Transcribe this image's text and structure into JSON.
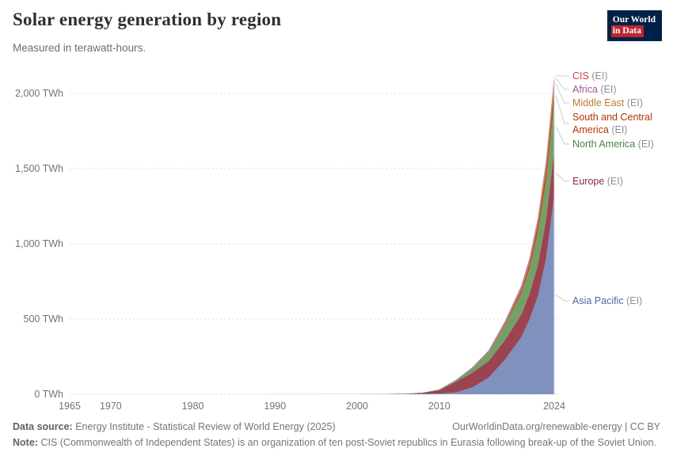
{
  "header": {
    "title": "Solar energy generation by region",
    "subtitle": "Measured in terawatt-hours.",
    "logo": {
      "line1": "Our World",
      "line2": "in Data"
    }
  },
  "chart_data": {
    "type": "area",
    "stacked": true,
    "title": "Solar energy generation by region",
    "unit": "TWh",
    "xlim": [
      1965,
      2024
    ],
    "ylim": [
      0,
      2200
    ],
    "grid": "dashed-horizontal",
    "legend_position": "right",
    "x": [
      1965,
      1970,
      1975,
      1980,
      1985,
      1990,
      1995,
      2000,
      2003,
      2006,
      2008,
      2010,
      2012,
      2014,
      2016,
      2018,
      2020,
      2021,
      2022,
      2023,
      2024
    ],
    "series": [
      {
        "name": "Asia Pacific",
        "color": "#7e92bd",
        "label_color": "#4c6a9c",
        "values": [
          0,
          0,
          0,
          0,
          0,
          0.1,
          0.2,
          0.4,
          0.7,
          1.2,
          2,
          4,
          12,
          45,
          110,
          230,
          380,
          500,
          650,
          900,
          1320
        ]
      },
      {
        "name": "Europe",
        "color": "#9c4351",
        "label_color": "#8b2b3f",
        "values": [
          0,
          0,
          0,
          0,
          0,
          0,
          0.1,
          0.1,
          0.5,
          2.5,
          7,
          23,
          70,
          97,
          110,
          130,
          150,
          170,
          210,
          255,
          305
        ]
      },
      {
        "name": "North America",
        "color": "#74a066",
        "label_color": "#4c8045",
        "values": [
          0,
          0,
          0,
          0,
          0.1,
          0.4,
          0.5,
          0.6,
          0.7,
          1,
          2,
          4,
          10,
          30,
          55,
          95,
          140,
          165,
          210,
          255,
          310
        ]
      },
      {
        "name": "South and Central America",
        "color": "#b5562c",
        "label_color": "#b13507",
        "values": [
          0,
          0,
          0,
          0,
          0,
          0,
          0,
          0,
          0,
          0,
          0,
          0.1,
          0.5,
          1,
          3,
          10,
          25,
          40,
          60,
          85,
          105
        ]
      },
      {
        "name": "Middle East",
        "color": "#cf8841",
        "label_color": "#bf7b33",
        "values": [
          0,
          0,
          0,
          0,
          0,
          0,
          0,
          0,
          0,
          0,
          0,
          0,
          0.5,
          1,
          3,
          6,
          12,
          16,
          22,
          32,
          47
        ]
      },
      {
        "name": "Africa",
        "color": "#a468ab",
        "label_color": "#a2559c",
        "values": [
          0,
          0,
          0,
          0,
          0,
          0,
          0,
          0,
          0,
          0,
          0.3,
          1,
          2,
          4,
          9,
          13,
          14,
          15,
          17,
          21,
          28
        ]
      },
      {
        "name": "CIS",
        "color": "#cc4755",
        "label_color": "#cf3d4e",
        "values": [
          0,
          0,
          0,
          0,
          0,
          0,
          0,
          0,
          0,
          0,
          0,
          0,
          0,
          0.1,
          0.3,
          0.8,
          2,
          2.5,
          3,
          4,
          5
        ]
      }
    ],
    "yticks": [
      {
        "value": 0,
        "label": "0 TWh"
      },
      {
        "value": 500,
        "label": "500 TWh"
      },
      {
        "value": 1000,
        "label": "1,000 TWh"
      },
      {
        "value": 1500,
        "label": "1,500 TWh"
      },
      {
        "value": 2000,
        "label": "2,000 TWh"
      }
    ],
    "xticks": [
      {
        "value": 1965,
        "label": "1965"
      },
      {
        "value": 1970,
        "label": "1970"
      },
      {
        "value": 1980,
        "label": "1980"
      },
      {
        "value": 1990,
        "label": "1990"
      },
      {
        "value": 2000,
        "label": "2000"
      },
      {
        "value": 2010,
        "label": "2010"
      },
      {
        "value": 2024,
        "label": "2024"
      }
    ],
    "legend": [
      {
        "series": "CIS",
        "suffix": "(EI)",
        "label_top": 10,
        "lines": 1
      },
      {
        "series": "Africa",
        "suffix": "(EI)",
        "label_top": 27,
        "lines": 1
      },
      {
        "series": "Middle East",
        "suffix": "(EI)",
        "label_top": 44,
        "lines": 1
      },
      {
        "series": "South and Central America",
        "suffix": "(EI)",
        "label_top": 62,
        "lines": 2
      },
      {
        "series": "North America",
        "suffix": "(EI)",
        "label_top": 96,
        "lines": 1
      },
      {
        "series": "Europe",
        "suffix": "(EI)",
        "label_top": 143,
        "lines": 1
      },
      {
        "series": "Asia Pacific",
        "suffix": "(EI)",
        "label_top": 294,
        "lines": 1
      }
    ]
  },
  "footer": {
    "data_source_label": "Data source:",
    "data_source_text": "Energy Institute - Statistical Review of World Energy (2025)",
    "link_text": "OurWorldinData.org/renewable-energy | CC BY",
    "note_label": "Note:",
    "note_text": "CIS (Commonwealth of Independent States) is an organization of ten post-Soviet republics in Eurasia following break-up of the Soviet Union."
  }
}
